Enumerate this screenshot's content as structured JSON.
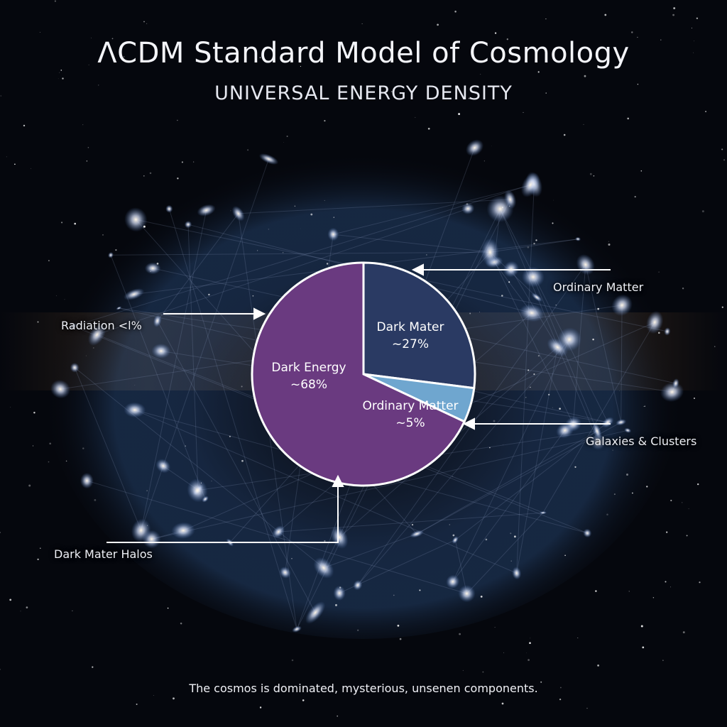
{
  "header": {
    "title": "ΛCDM Standard Model of Cosmology",
    "subtitle": "UNIVERSAL ENERGY DENSITY"
  },
  "chart_data": {
    "type": "pie",
    "slices": [
      {
        "label": "Dark Mater",
        "value_label": "~27%",
        "value": 27,
        "color": "#2a3a63"
      },
      {
        "label": "Ordinary Matter",
        "value_label": "~5%",
        "value": 5,
        "color": "#6fa6cf"
      },
      {
        "label": "Dark Energy",
        "value_label": "~68%",
        "value": 68,
        "color": "#6a3a80"
      }
    ]
  },
  "callouts": {
    "ordinary_matter": "Ordinary Matter",
    "radiation": "Radiation  <l%",
    "galaxies_clusters": "Galaxies & Clusters",
    "dark_matter_halos": "Dark Mater Halos"
  },
  "caption": "The cosmos is dominated, mysterious, unsenen components."
}
